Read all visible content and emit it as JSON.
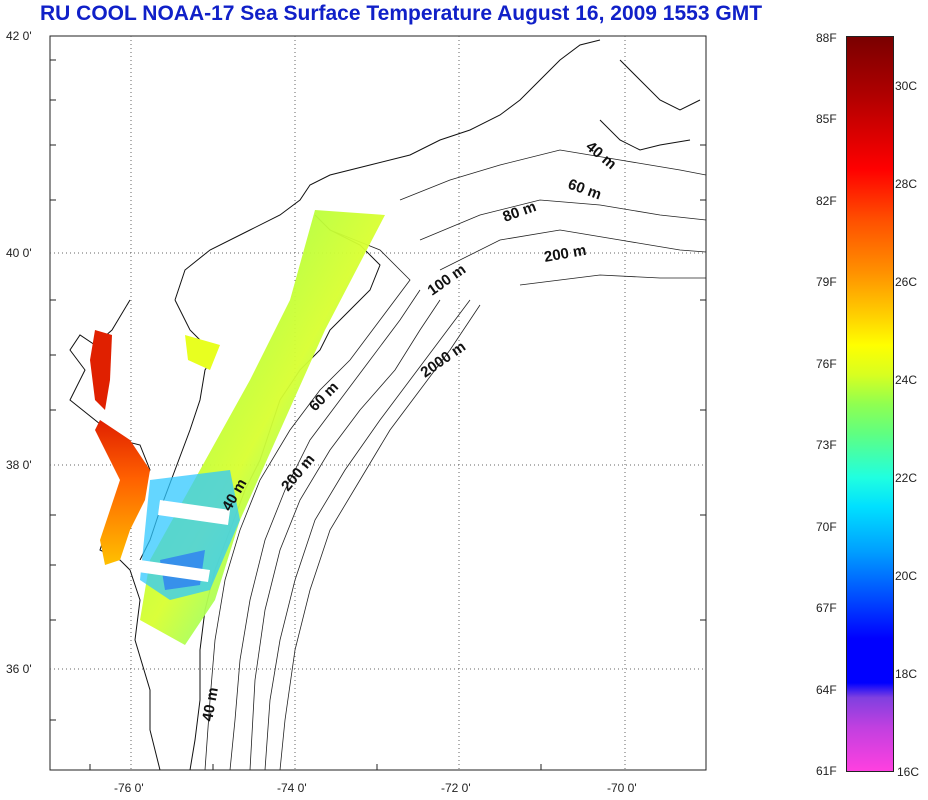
{
  "title": "RU COOL  NOAA-17 Sea Surface Temperature August 16, 2009 1553 GMT",
  "map": {
    "lat_labels": [
      "42 0'",
      "40 0'",
      "38 0'",
      "36 0'"
    ],
    "lon_labels": [
      "-76 0'",
      "-74 0'",
      "-72 0'",
      "-70 0'"
    ],
    "contour_labels": [
      "40 m",
      "60 m",
      "80 m",
      "200 m",
      "100 m",
      "2000 m",
      "60 m",
      "200 m",
      "40 m",
      "40 m"
    ]
  },
  "colorbar": {
    "fahrenheit": [
      "88F",
      "85F",
      "82F",
      "79F",
      "76F",
      "73F",
      "70F",
      "67F",
      "64F",
      "61F"
    ],
    "celsius": [
      "30C",
      "28C",
      "26C",
      "24C",
      "22C",
      "20C",
      "18C",
      "16C"
    ]
  }
}
